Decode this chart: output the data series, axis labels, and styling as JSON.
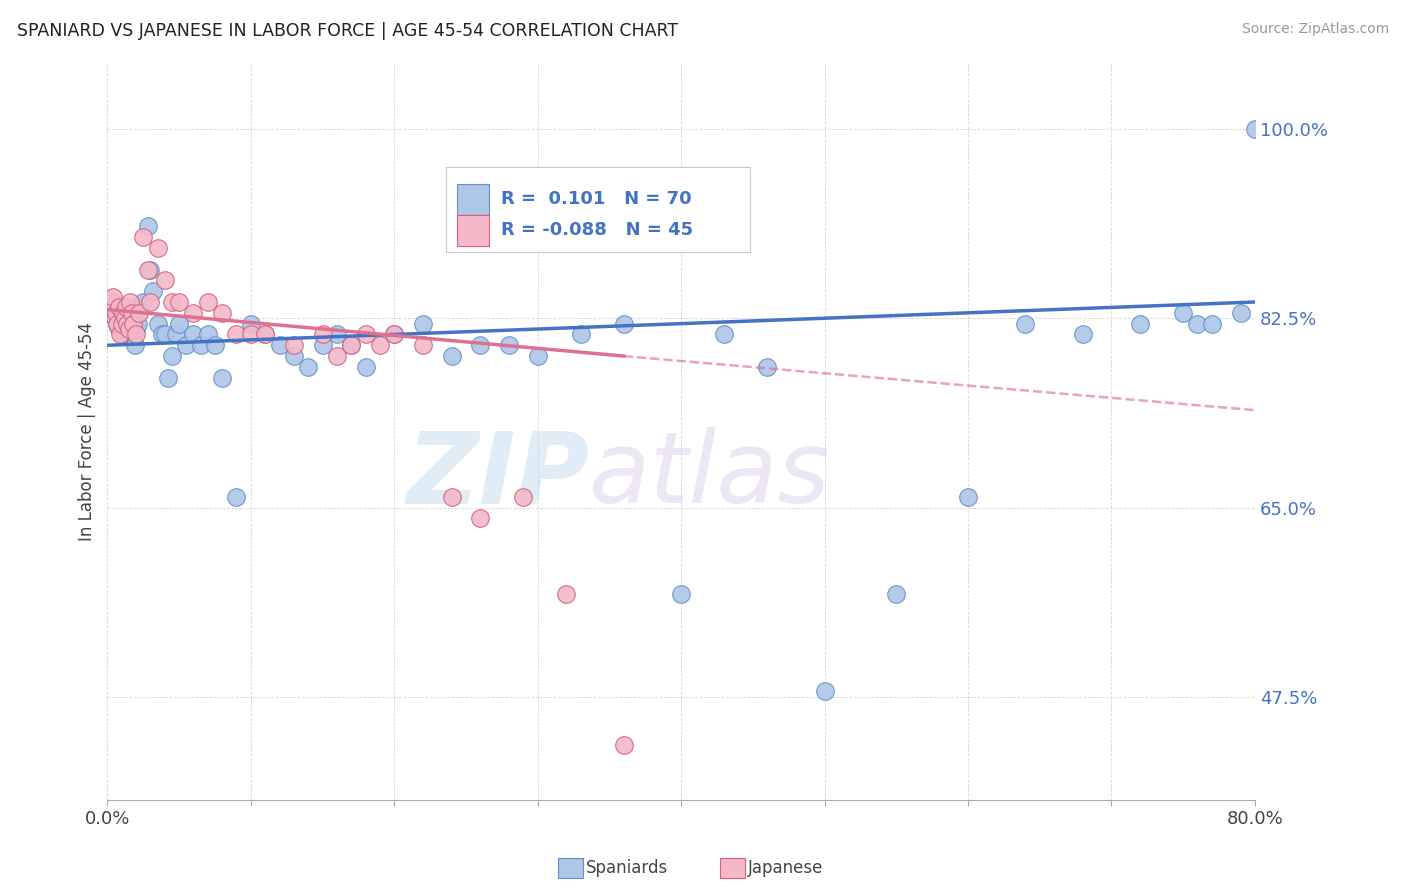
{
  "title": "SPANIARD VS JAPANESE IN LABOR FORCE | AGE 45-54 CORRELATION CHART",
  "source": "Source: ZipAtlas.com",
  "ylabel": "In Labor Force | Age 45-54",
  "ytick_labels": [
    "47.5%",
    "65.0%",
    "82.5%",
    "100.0%"
  ],
  "ytick_values": [
    0.475,
    0.65,
    0.825,
    1.0
  ],
  "xlim": [
    0.0,
    0.8
  ],
  "ylim": [
    0.38,
    1.06
  ],
  "watermark_zip": "ZIP",
  "watermark_atlas": "atlas",
  "blue_color": "#aec6e8",
  "pink_color": "#f4b8c8",
  "line_blue": "#4472c4",
  "line_pink": "#e07090",
  "blue_edge": "#6090c8",
  "pink_edge": "#d06080",
  "spaniards_x": [
    0.002,
    0.003,
    0.005,
    0.006,
    0.007,
    0.008,
    0.009,
    0.01,
    0.01,
    0.011,
    0.012,
    0.013,
    0.014,
    0.015,
    0.016,
    0.017,
    0.018,
    0.019,
    0.02,
    0.021,
    0.022,
    0.025,
    0.028,
    0.03,
    0.032,
    0.035,
    0.038,
    0.04,
    0.042,
    0.045,
    0.048,
    0.05,
    0.055,
    0.06,
    0.065,
    0.07,
    0.075,
    0.08,
    0.09,
    0.1,
    0.11,
    0.12,
    0.13,
    0.14,
    0.15,
    0.16,
    0.17,
    0.18,
    0.2,
    0.22,
    0.24,
    0.26,
    0.28,
    0.3,
    0.33,
    0.36,
    0.4,
    0.43,
    0.46,
    0.5,
    0.55,
    0.6,
    0.64,
    0.68,
    0.72,
    0.75,
    0.76,
    0.77,
    0.79,
    0.8
  ],
  "spaniards_y": [
    0.83,
    0.84,
    0.825,
    0.835,
    0.82,
    0.815,
    0.83,
    0.835,
    0.81,
    0.82,
    0.825,
    0.83,
    0.815,
    0.81,
    0.82,
    0.825,
    0.81,
    0.8,
    0.815,
    0.82,
    0.835,
    0.84,
    0.91,
    0.87,
    0.85,
    0.82,
    0.81,
    0.81,
    0.77,
    0.79,
    0.81,
    0.82,
    0.8,
    0.81,
    0.8,
    0.81,
    0.8,
    0.77,
    0.66,
    0.82,
    0.81,
    0.8,
    0.79,
    0.78,
    0.8,
    0.81,
    0.8,
    0.78,
    0.81,
    0.82,
    0.79,
    0.8,
    0.8,
    0.79,
    0.81,
    0.82,
    0.57,
    0.81,
    0.78,
    0.48,
    0.57,
    0.66,
    0.82,
    0.81,
    0.82,
    0.83,
    0.82,
    0.82,
    0.83,
    1.0
  ],
  "japanese_x": [
    0.002,
    0.003,
    0.004,
    0.005,
    0.006,
    0.007,
    0.008,
    0.009,
    0.01,
    0.011,
    0.012,
    0.013,
    0.014,
    0.015,
    0.016,
    0.017,
    0.018,
    0.02,
    0.022,
    0.025,
    0.028,
    0.03,
    0.035,
    0.04,
    0.045,
    0.05,
    0.06,
    0.07,
    0.08,
    0.09,
    0.1,
    0.11,
    0.13,
    0.15,
    0.16,
    0.17,
    0.18,
    0.19,
    0.2,
    0.22,
    0.24,
    0.26,
    0.29,
    0.32,
    0.36
  ],
  "japanese_y": [
    0.835,
    0.84,
    0.845,
    0.825,
    0.83,
    0.82,
    0.835,
    0.81,
    0.82,
    0.83,
    0.825,
    0.835,
    0.82,
    0.815,
    0.84,
    0.83,
    0.82,
    0.81,
    0.83,
    0.9,
    0.87,
    0.84,
    0.89,
    0.86,
    0.84,
    0.84,
    0.83,
    0.84,
    0.83,
    0.81,
    0.81,
    0.81,
    0.8,
    0.81,
    0.79,
    0.8,
    0.81,
    0.8,
    0.81,
    0.8,
    0.66,
    0.64,
    0.66,
    0.57,
    0.43
  ],
  "trend_blue_x0": 0.0,
  "trend_blue_y0": 0.8,
  "trend_blue_x1": 0.8,
  "trend_blue_y1": 0.84,
  "trend_pink_x0": 0.0,
  "trend_pink_y0": 0.833,
  "trend_pink_solid_x1": 0.36,
  "trend_pink_y_at_solid": 0.79,
  "trend_pink_x1": 0.8,
  "trend_pink_y1": 0.74
}
